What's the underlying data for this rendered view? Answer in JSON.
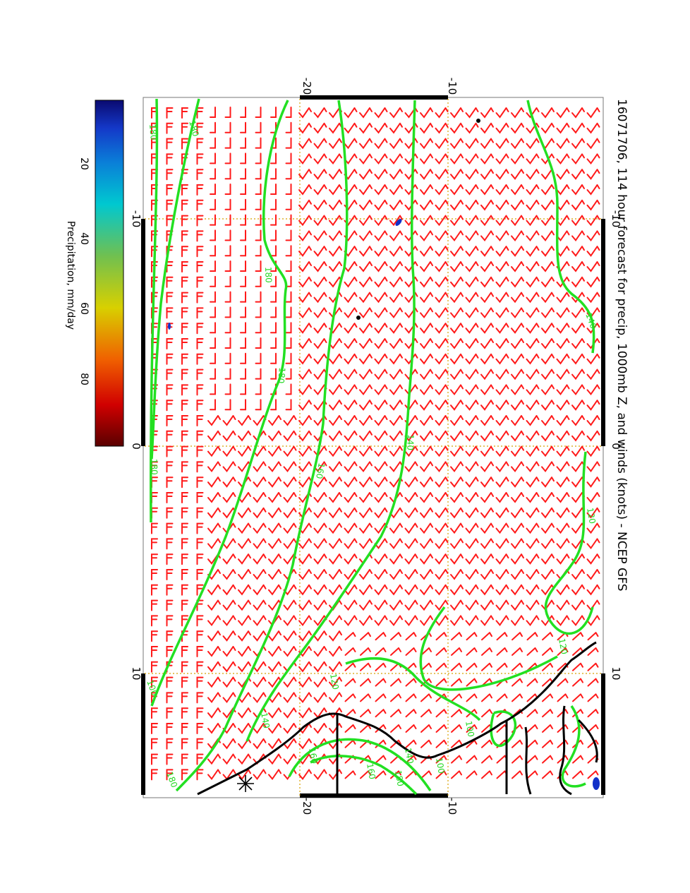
{
  "title": "16071706, 114 hour forecast for precip, 1000mb Z, and winds (knots) - NCEP GFS",
  "colorbar": {
    "label": "Precipitation, mm/day",
    "ticks": [
      "20",
      "40",
      "60",
      "80"
    ],
    "colors": [
      "#6b0000",
      "#c40000",
      "#f03a00",
      "#f7a000",
      "#d8d800",
      "#6fc04a",
      "#00c8c8",
      "#0a7fd8",
      "#1230c8",
      "#0a0a7a"
    ]
  },
  "axes": {
    "top_ticks": [
      "-20",
      "-10"
    ],
    "bottom_ticks": [
      "-20",
      "-10"
    ],
    "left_ticks": [
      "-10",
      "0",
      "10"
    ],
    "right_ticks": [
      "-10",
      "0",
      "10"
    ]
  },
  "contour_labels": [
    "180",
    "180",
    "180",
    "180",
    "180",
    "160",
    "140",
    "140",
    "120",
    "100",
    "180",
    "140",
    "160",
    "180",
    "140",
    "120",
    "120",
    "100",
    "100",
    "160"
  ],
  "colors": {
    "wind_barb": "#ff1a1a",
    "contour": "#22e022",
    "coast": "#000000",
    "grid": "#d8a000"
  }
}
